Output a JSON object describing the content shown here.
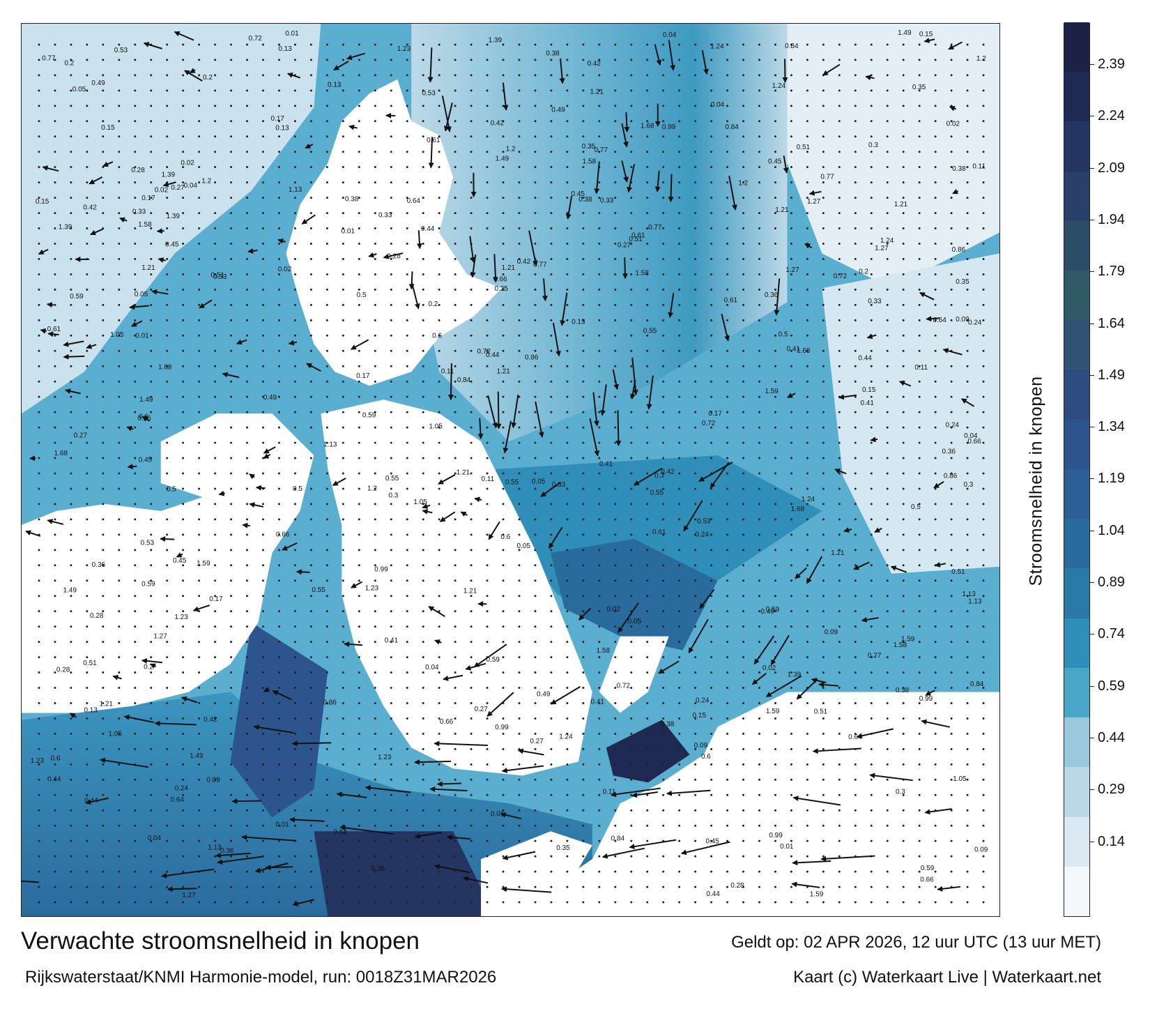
{
  "map": {
    "title": "Verwachte stroomsnelheid in knopen",
    "model_run": "Rijkswaterstaat/KNMI Harmonie-model, run: 0018Z31MAR2026",
    "valid_time": "Geldt op: 02 APR 2026, 12 uur UTC (13 uur MET)",
    "credit": "Kaart (c) Waterkaart Live | Waterkaart.net"
  },
  "legend": {
    "label": "Stroomsnelheid in knopen",
    "ticks": [
      "2.39",
      "2.24",
      "2.09",
      "1.94",
      "1.79",
      "1.64",
      "1.49",
      "1.34",
      "1.19",
      "1.04",
      "0.89",
      "0.74",
      "0.59",
      "0.44",
      "0.29",
      "0.14"
    ],
    "colors": [
      "#f3f8fb",
      "#dbeaf2",
      "#bcd9e7",
      "#9ac8dc",
      "#4aa6c7",
      "#2f8fb8",
      "#2a7aa8",
      "#2a6b9d",
      "#2c5f95",
      "#2d548c",
      "#2e4c80",
      "#305273",
      "#2f5a66",
      "#2c4d66",
      "#28406a",
      "#233560",
      "#1f2a52",
      "#1c2145"
    ]
  },
  "annotations": {
    "speed_labels": [
      "0.02",
      "0.01",
      "0.04",
      "0.44",
      "0.38",
      "0.45",
      "0.42",
      "0.27",
      "0.51",
      "0.59",
      "0.84",
      "1.59",
      "1.68",
      "1.27",
      "1.21",
      "0.99",
      "1.05",
      "1.23",
      "1.2",
      "1.24",
      "1.39",
      "1.49",
      "1.58",
      "1.21",
      "1.13",
      "0.72",
      "0.61",
      "0.5",
      "0.35",
      "0.28",
      "0.17",
      "0.13",
      "0.09",
      "0.05",
      "0.36",
      "0.41",
      "0.6",
      "0.86",
      "0.77",
      "0.66",
      "0.64",
      "0.53",
      "0.24",
      "0.11",
      "0.15",
      "0.2",
      "0.3",
      "0.33",
      "0.49",
      "0.55"
    ]
  }
}
